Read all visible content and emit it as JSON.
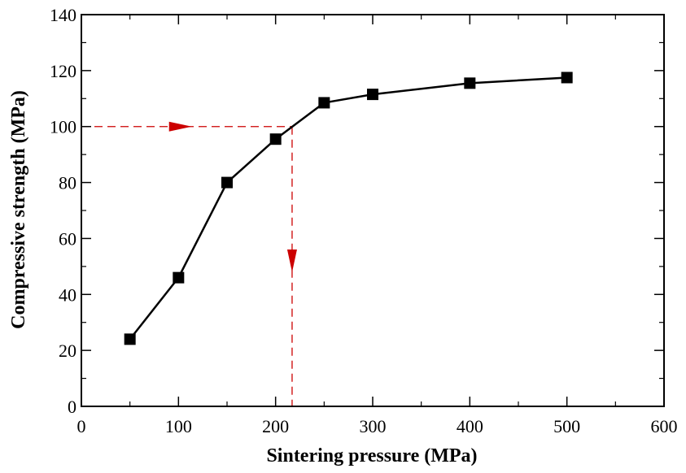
{
  "chart_data": {
    "type": "line",
    "xlabel": "Sintering pressure (MPa)",
    "ylabel": "Compressive strength (MPa)",
    "xlim": [
      0,
      600
    ],
    "ylim": [
      0,
      140
    ],
    "xticks": [
      0,
      100,
      200,
      300,
      400,
      500,
      600
    ],
    "yticks": [
      0,
      20,
      40,
      60,
      80,
      100,
      120,
      140
    ],
    "grid": false,
    "series": [
      {
        "x": [
          50,
          100,
          150,
          200,
          250,
          300,
          400,
          500
        ],
        "y": [
          24,
          46,
          80,
          95.5,
          108.5,
          111.5,
          115.5,
          117.5
        ],
        "color": "#000000",
        "marker": "square"
      }
    ],
    "annotations": [
      {
        "type": "dashed-arrow-horizontal",
        "y": 100,
        "x_from": 0,
        "x_to": 217,
        "color": "#cc0000"
      },
      {
        "type": "dashed-arrow-vertical",
        "x": 217,
        "y_from": 100,
        "y_to": 0,
        "color": "#cc0000"
      }
    ]
  }
}
